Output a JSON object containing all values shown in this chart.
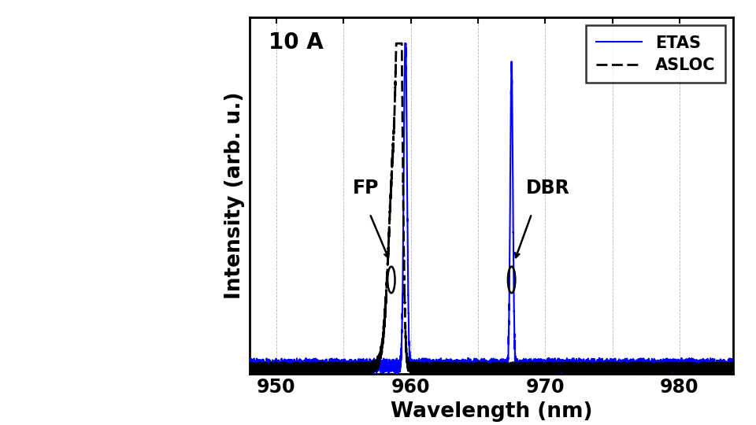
{
  "xlim": [
    948,
    984
  ],
  "ylim": [
    0,
    1.08
  ],
  "xlabel": "Wavelength (nm)",
  "ylabel": "Intensity (arb. u.)",
  "annotation_text": "10 A",
  "fp_label": "FP",
  "dbr_label": "DBR",
  "asloc_label": "ASLOC",
  "etas_label": "ETAS",
  "asloc_color": "#000000",
  "etas_color": "#0000ff",
  "fp_peak_asloc": 959.2,
  "fp_peak_etas": 959.6,
  "dbr_peak_etas": 967.5,
  "noise_level": 0.035,
  "background_color": "#ffffff",
  "plot_bg_color": "#ffffff",
  "grid_color": "#999999",
  "fig_width": 4.5,
  "fig_height": 5.4
}
